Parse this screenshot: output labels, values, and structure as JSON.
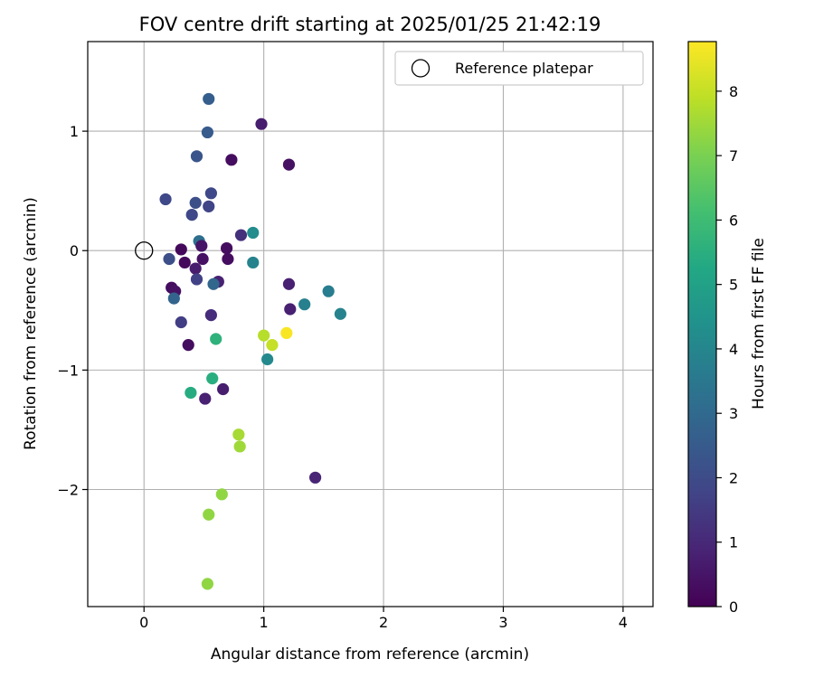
{
  "chart_data": {
    "type": "scatter",
    "title": "FOV centre drift starting at 2025/01/25 21:42:19",
    "xlabel": "Angular distance from reference (arcmin)",
    "ylabel": "Rotation from reference (arcmin)",
    "xlim": [
      -0.47,
      4.25
    ],
    "ylim": [
      -2.98,
      1.75
    ],
    "xticks": [
      0,
      1,
      2,
      3,
      4
    ],
    "xtick_labels": [
      "0",
      "1",
      "2",
      "3",
      "4"
    ],
    "yticks": [
      -2,
      -1,
      0,
      1
    ],
    "ytick_labels": [
      "−2",
      "−1",
      "0",
      "1"
    ],
    "grid": true,
    "legend": {
      "position": "top-right",
      "entries": [
        "Reference platepar"
      ]
    },
    "colorbar": {
      "label": "Hours from first FF file",
      "colormap": "viridis",
      "min": 0,
      "max": 8.77,
      "ticks": [
        0,
        1,
        2,
        3,
        4,
        5,
        6,
        7,
        8
      ],
      "tick_labels": [
        "0",
        "1",
        "2",
        "3",
        "4",
        "5",
        "6",
        "7",
        "8"
      ]
    },
    "reference": {
      "x": 0,
      "y": 0
    },
    "points": [
      {
        "x": 0.54,
        "y": 1.27,
        "h": 2.6
      },
      {
        "x": 0.53,
        "y": 0.99,
        "h": 2.5
      },
      {
        "x": 0.98,
        "y": 1.06,
        "h": 0.7
      },
      {
        "x": 0.44,
        "y": 0.79,
        "h": 2.3
      },
      {
        "x": 0.73,
        "y": 0.76,
        "h": 0.3
      },
      {
        "x": 1.21,
        "y": 0.72,
        "h": 0.4
      },
      {
        "x": 0.18,
        "y": 0.43,
        "h": 1.9
      },
      {
        "x": 0.56,
        "y": 0.48,
        "h": 1.9
      },
      {
        "x": 0.43,
        "y": 0.4,
        "h": 2.1
      },
      {
        "x": 0.54,
        "y": 0.37,
        "h": 1.8
      },
      {
        "x": 0.4,
        "y": 0.3,
        "h": 1.9
      },
      {
        "x": 0.81,
        "y": 0.13,
        "h": 1.2
      },
      {
        "x": 0.91,
        "y": 0.15,
        "h": 4.2
      },
      {
        "x": 0.46,
        "y": 0.08,
        "h": 3.2
      },
      {
        "x": 0.48,
        "y": 0.04,
        "h": 0.5
      },
      {
        "x": 0.31,
        "y": 0.01,
        "h": 0.2
      },
      {
        "x": 0.69,
        "y": 0.02,
        "h": 0.3
      },
      {
        "x": 0.21,
        "y": -0.07,
        "h": 2.1
      },
      {
        "x": 0.49,
        "y": -0.07,
        "h": 0.4
      },
      {
        "x": 0.7,
        "y": -0.07,
        "h": 0.3
      },
      {
        "x": 0.34,
        "y": -0.1,
        "h": 0.2
      },
      {
        "x": 0.91,
        "y": -0.1,
        "h": 3.9
      },
      {
        "x": 0.43,
        "y": -0.15,
        "h": 0.7
      },
      {
        "x": 0.44,
        "y": -0.24,
        "h": 1.7
      },
      {
        "x": 0.62,
        "y": -0.26,
        "h": 0.8
      },
      {
        "x": 0.58,
        "y": -0.28,
        "h": 2.9
      },
      {
        "x": 1.21,
        "y": -0.28,
        "h": 0.8
      },
      {
        "x": 0.23,
        "y": -0.31,
        "h": 0.3
      },
      {
        "x": 0.26,
        "y": -0.34,
        "h": 0.4
      },
      {
        "x": 1.54,
        "y": -0.34,
        "h": 3.7
      },
      {
        "x": 0.25,
        "y": -0.4,
        "h": 2.8
      },
      {
        "x": 1.34,
        "y": -0.45,
        "h": 3.8
      },
      {
        "x": 1.22,
        "y": -0.49,
        "h": 0.8
      },
      {
        "x": 0.56,
        "y": -0.54,
        "h": 1.1
      },
      {
        "x": 1.64,
        "y": -0.53,
        "h": 3.9
      },
      {
        "x": 0.31,
        "y": -0.6,
        "h": 1.6
      },
      {
        "x": 1.19,
        "y": -0.69,
        "h": 8.7
      },
      {
        "x": 1.0,
        "y": -0.71,
        "h": 7.8
      },
      {
        "x": 0.6,
        "y": -0.74,
        "h": 5.6
      },
      {
        "x": 1.07,
        "y": -0.79,
        "h": 8.0
      },
      {
        "x": 0.37,
        "y": -0.79,
        "h": 0.3
      },
      {
        "x": 1.03,
        "y": -0.91,
        "h": 4.1
      },
      {
        "x": 0.57,
        "y": -1.07,
        "h": 5.5
      },
      {
        "x": 0.66,
        "y": -1.16,
        "h": 0.7
      },
      {
        "x": 0.39,
        "y": -1.19,
        "h": 5.4
      },
      {
        "x": 0.51,
        "y": -1.24,
        "h": 0.8
      },
      {
        "x": 0.79,
        "y": -1.54,
        "h": 7.6
      },
      {
        "x": 0.8,
        "y": -1.64,
        "h": 7.5
      },
      {
        "x": 1.43,
        "y": -1.9,
        "h": 0.9
      },
      {
        "x": 0.65,
        "y": -2.04,
        "h": 7.3
      },
      {
        "x": 0.54,
        "y": -2.21,
        "h": 7.3
      },
      {
        "x": 0.53,
        "y": -2.79,
        "h": 7.3
      }
    ]
  }
}
